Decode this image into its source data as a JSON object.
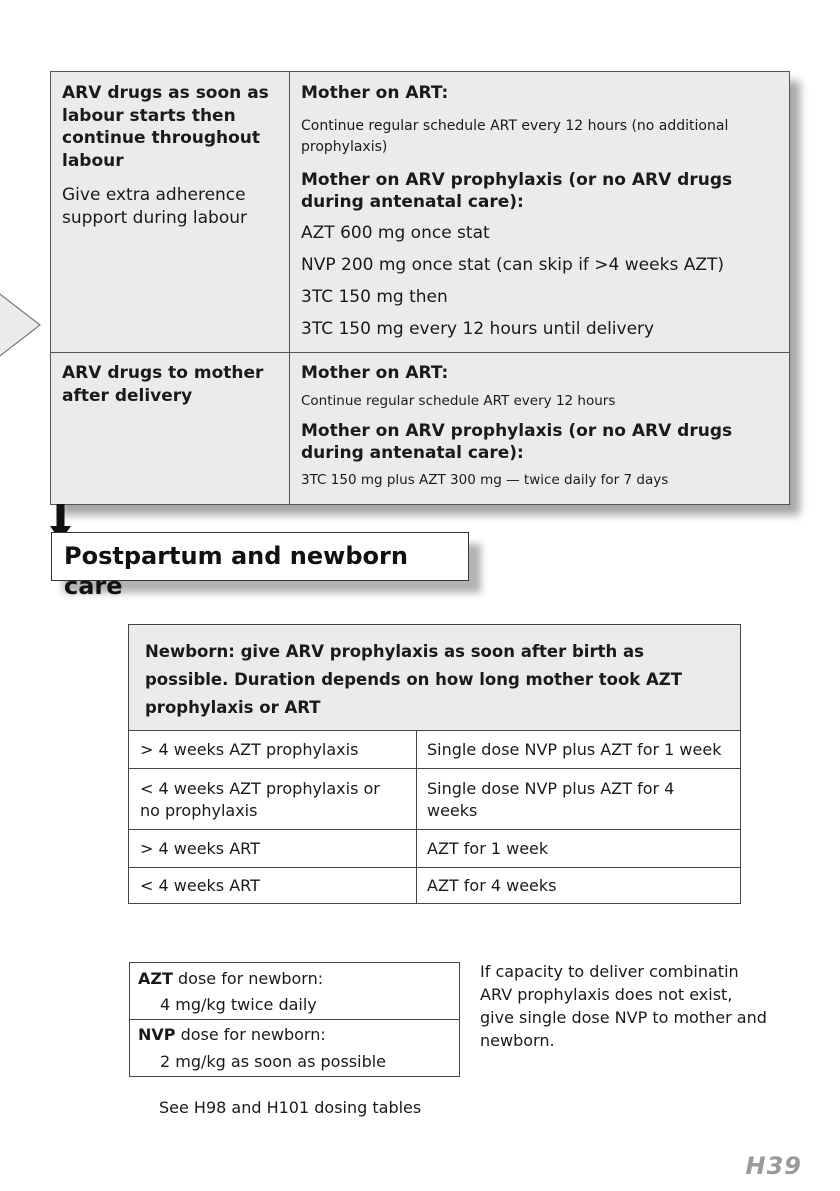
{
  "top_table": {
    "row1": {
      "left_title": "ARV drugs as soon as labour starts then continue throughout labour",
      "left_note": "Give extra adherence support during labour",
      "art_heading": "Mother on ART:",
      "art_text": "Continue regular schedule ART every 12 hours (no additional prophylaxis)",
      "proph_heading": "Mother on ARV prophylaxis (or no ARV drugs during antenatal care):",
      "lines": [
        "AZT 600 mg once stat",
        "NVP 200 mg once stat (can skip if >4 weeks AZT)",
        "3TC 150 mg then",
        "3TC 150 mg every 12 hours until delivery"
      ]
    },
    "row2": {
      "left_title": "ARV drugs to mother after delivery",
      "art_heading": "Mother on ART:",
      "art_text": "Continue regular schedule ART every 12 hours",
      "proph_heading": "Mother on ARV prophylaxis (or no ARV drugs during antenatal care):",
      "proph_text": "3TC 150 mg plus AZT 300 mg —  twice daily for 7 days"
    }
  },
  "section_title": "Postpartum and newborn care",
  "newborn_table": {
    "header_bold": "Newborn:",
    "header_text": "give ARV prophylaxis as soon after birth as possible. Duration depends on how long mother took AZT prophylaxis or ART",
    "rows": [
      {
        "condition": "> 4 weeks AZT prophylaxis",
        "regimen": "Single dose NVP plus AZT for 1 week"
      },
      {
        "condition": "< 4 weeks AZT prophylaxis or no prophylaxis",
        "regimen": "Single dose NVP plus AZT for 4 weeks"
      },
      {
        "condition": "> 4 weeks ART",
        "regimen": "AZT for 1 week"
      },
      {
        "condition": "< 4 weeks ART",
        "regimen": "AZT for 4 weeks"
      }
    ]
  },
  "dose_box": {
    "azt_drug": "AZT",
    "azt_label": " dose for newborn:",
    "azt_dose": "4 mg/kg twice daily",
    "nvp_drug": "NVP",
    "nvp_label": " dose for newborn:",
    "nvp_dose": "2 mg/kg as soon as possible"
  },
  "capacity_note": "If capacity to deliver combinatin ARV prophylaxis does not exist, give single dose NVP to mother and newborn.",
  "see_note": "See H98 and H101 dosing tables",
  "page_number": "H39"
}
